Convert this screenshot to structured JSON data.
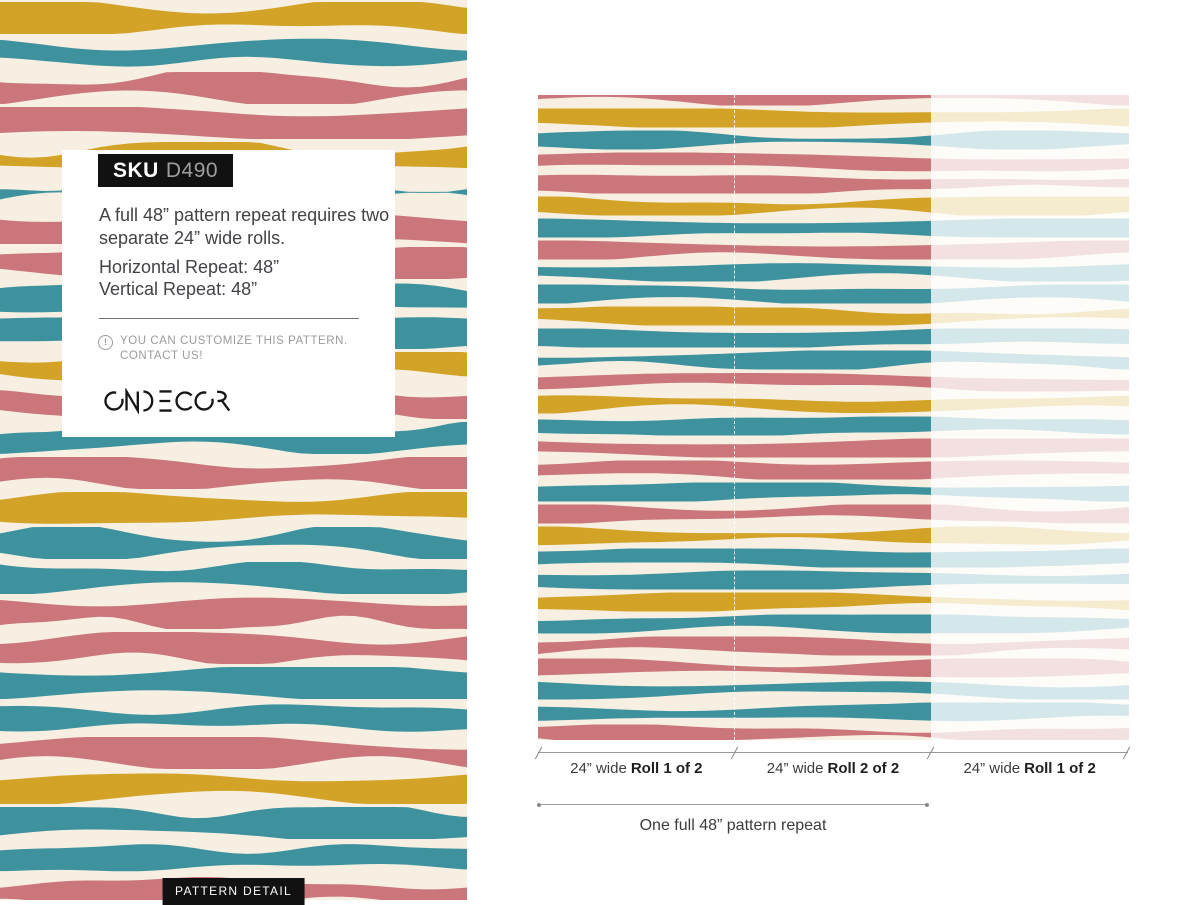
{
  "detail_card": {
    "sku_label": "SKU",
    "sku_value": "D490",
    "description": "A full 48” pattern repeat requires two separate 24” wide rolls.",
    "horizontal_repeat": "Horizontal Repeat: 48”",
    "vertical_repeat": "Vertical Repeat: 48”",
    "note": "YOU CAN CUSTOMIZE THIS PATTERN. CONTACT US!",
    "brand": "ONDECOR"
  },
  "pattern_detail_tag": "PATTERN DETAIL",
  "measurements": {
    "rolls": [
      {
        "prefix": "24” wide",
        "label": "Roll 1 of 2"
      },
      {
        "prefix": "24” wide",
        "label": "Roll 2 of 2"
      },
      {
        "prefix": "24” wide",
        "label": "Roll 1 of 2"
      }
    ],
    "full_repeat_label": "One full 48” pattern repeat"
  },
  "ui_colors": {
    "tag_background": "#111111",
    "body_text": "#434347",
    "muted_text": "#9b9b9b",
    "dimension_line": "#9a9a9a"
  },
  "pattern": {
    "colors": {
      "teal": "#3E929E",
      "rose": "#CA767B",
      "yellow": "#D3A327",
      "cream": "#F7F0E2"
    },
    "left": {
      "sequence": [
        "yellow",
        "teal",
        "rose",
        "rose",
        "yellow",
        "teal",
        "rose",
        "rose",
        "teal",
        "teal",
        "yellow",
        "rose",
        "teal",
        "rose",
        "yellow",
        "teal",
        "teal",
        "rose",
        "rose",
        "teal",
        "teal",
        "rose",
        "yellow",
        "teal",
        "teal",
        "rose"
      ]
    },
    "right": {
      "sequence": [
        "rose",
        "yellow",
        "teal",
        "rose",
        "rose",
        "yellow",
        "teal",
        "rose",
        "teal",
        "teal",
        "yellow",
        "teal",
        "teal",
        "rose",
        "yellow",
        "teal",
        "rose",
        "rose",
        "teal",
        "rose",
        "yellow",
        "teal",
        "teal",
        "yellow",
        "teal",
        "rose",
        "rose",
        "teal",
        "teal",
        "rose"
      ]
    }
  }
}
